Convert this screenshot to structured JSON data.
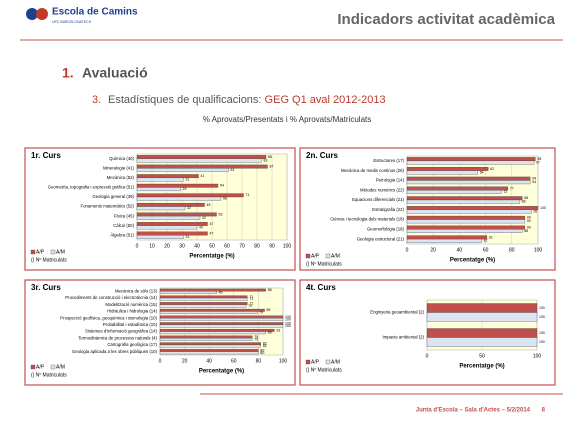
{
  "slide": {
    "logo": "Escola de Camins",
    "logo_sub": "UPC BARCELONATECH",
    "title": "Indicadors activitat acadèmica",
    "section_number": "1.",
    "section": "Avaluació",
    "item_number": "3.",
    "item_text": "Estadístiques de qualificacions:",
    "item_highlight": "GEG Q1 aval 2012-2013",
    "subtitle": "% Aprovats/Presentats i % Aprovats/Matriculats",
    "footer": "Junta d'Escola – Sala d'Actes – 5/2/2014",
    "page": "8"
  },
  "chart_data": [
    {
      "type": "hbar",
      "title": "1r. Curs",
      "x_label": "Percentatge (%)",
      "note": "() Nº Matriculats",
      "grid": true,
      "categories": [
        "Química (40)",
        "Mineralogia (41)",
        "Mecànica (52)",
        "Geometria, topografia i expressió gràfica (51)",
        "Geologia general (39)",
        "Fonaments matemàtics (52)",
        "Física (45)",
        "Càlcul (50)",
        "Àlgebra (51)"
      ],
      "series": [
        {
          "name": "A/P",
          "color": "#c0504d",
          "values": [
            86,
            87,
            41,
            54,
            71,
            45,
            53,
            47,
            47
          ]
        },
        {
          "name": "A/M",
          "color": "#dbe5f1",
          "values": [
            83,
            61,
            31,
            29,
            56,
            32,
            42,
            40,
            31
          ]
        }
      ],
      "xlim": [
        0,
        100
      ],
      "xticks": [
        0,
        10,
        20,
        30,
        40,
        50,
        60,
        70,
        80,
        90,
        100
      ]
    },
    {
      "type": "hbar",
      "title": "2n. Curs",
      "x_label": "Percentatge (%)",
      "note": "() Nº Matriculats",
      "grid": true,
      "categories": [
        "Estructures (17)",
        "Mecànica de medis continus (26)",
        "Petrologia (14)",
        "Mètodes numèrics (22)",
        "Equacions diferencials (21)",
        "Estratigrafia (22)",
        "Ciència i tecnologia dels materials (18)",
        "Geomorfologia (18)",
        "Geologia estructural (21)"
      ],
      "series": [
        {
          "name": "A/P",
          "color": "#c0504d",
          "values": [
            98,
            62,
            94,
            77,
            88,
            100,
            90,
            90,
            61
          ]
        },
        {
          "name": "A/M",
          "color": "#dbe5f1",
          "values": [
            97,
            54,
            94,
            72,
            86,
            95,
            90,
            88,
            57
          ]
        }
      ],
      "xlim": [
        0,
        100
      ],
      "xticks": [
        0,
        20,
        40,
        60,
        80,
        100
      ]
    },
    {
      "type": "hbar",
      "title": "3r. Curs",
      "x_label": "Percentatge (%)",
      "note": "() Nº Matriculats",
      "grid": true,
      "categories": [
        "Mecànica de sòls (13)",
        "Procediments de construcció i electrotècnia (14)",
        "Modelització numèrica (15)",
        "Hidràulica i hidrologia (14)",
        "Prospecció geofísica, geoquímica i sismologia (10)",
        "Probabilitat i estadística (10)",
        "Sistemes d'informació geogràfica (14)",
        "Termodinàmica de processos naturals (4)",
        "Cartografia geològica (17)",
        "Geologia aplicada a les obres públiques (10)"
      ],
      "series": [
        {
          "name": "A/P",
          "color": "#c0504d",
          "values": [
            86,
            71,
            71,
            85,
            100,
            100,
            93,
            75,
            82,
            80
          ]
        },
        {
          "name": "A/M",
          "color": "#dbe5f1",
          "values": [
            46,
            71,
            70,
            79,
            100,
            100,
            86,
            75,
            82,
            80
          ]
        }
      ],
      "xlim": [
        0,
        100
      ],
      "xticks": [
        0,
        20,
        40,
        60,
        80,
        100
      ]
    },
    {
      "type": "hbar",
      "title": "4t. Curs",
      "x_label": "Percentatge (%)",
      "note": "() Nº Matriculats",
      "grid": true,
      "categories": [
        "Enginyeria geoambiental (2)",
        "Impacte ambiental (2)"
      ],
      "series": [
        {
          "name": "A/P",
          "color": "#c0504d",
          "values": [
            100,
            100
          ]
        },
        {
          "name": "A/M",
          "color": "#dbe5f1",
          "values": [
            100,
            100
          ]
        }
      ],
      "xlim": [
        0,
        100
      ],
      "xticks": [
        0,
        50,
        100
      ]
    }
  ]
}
